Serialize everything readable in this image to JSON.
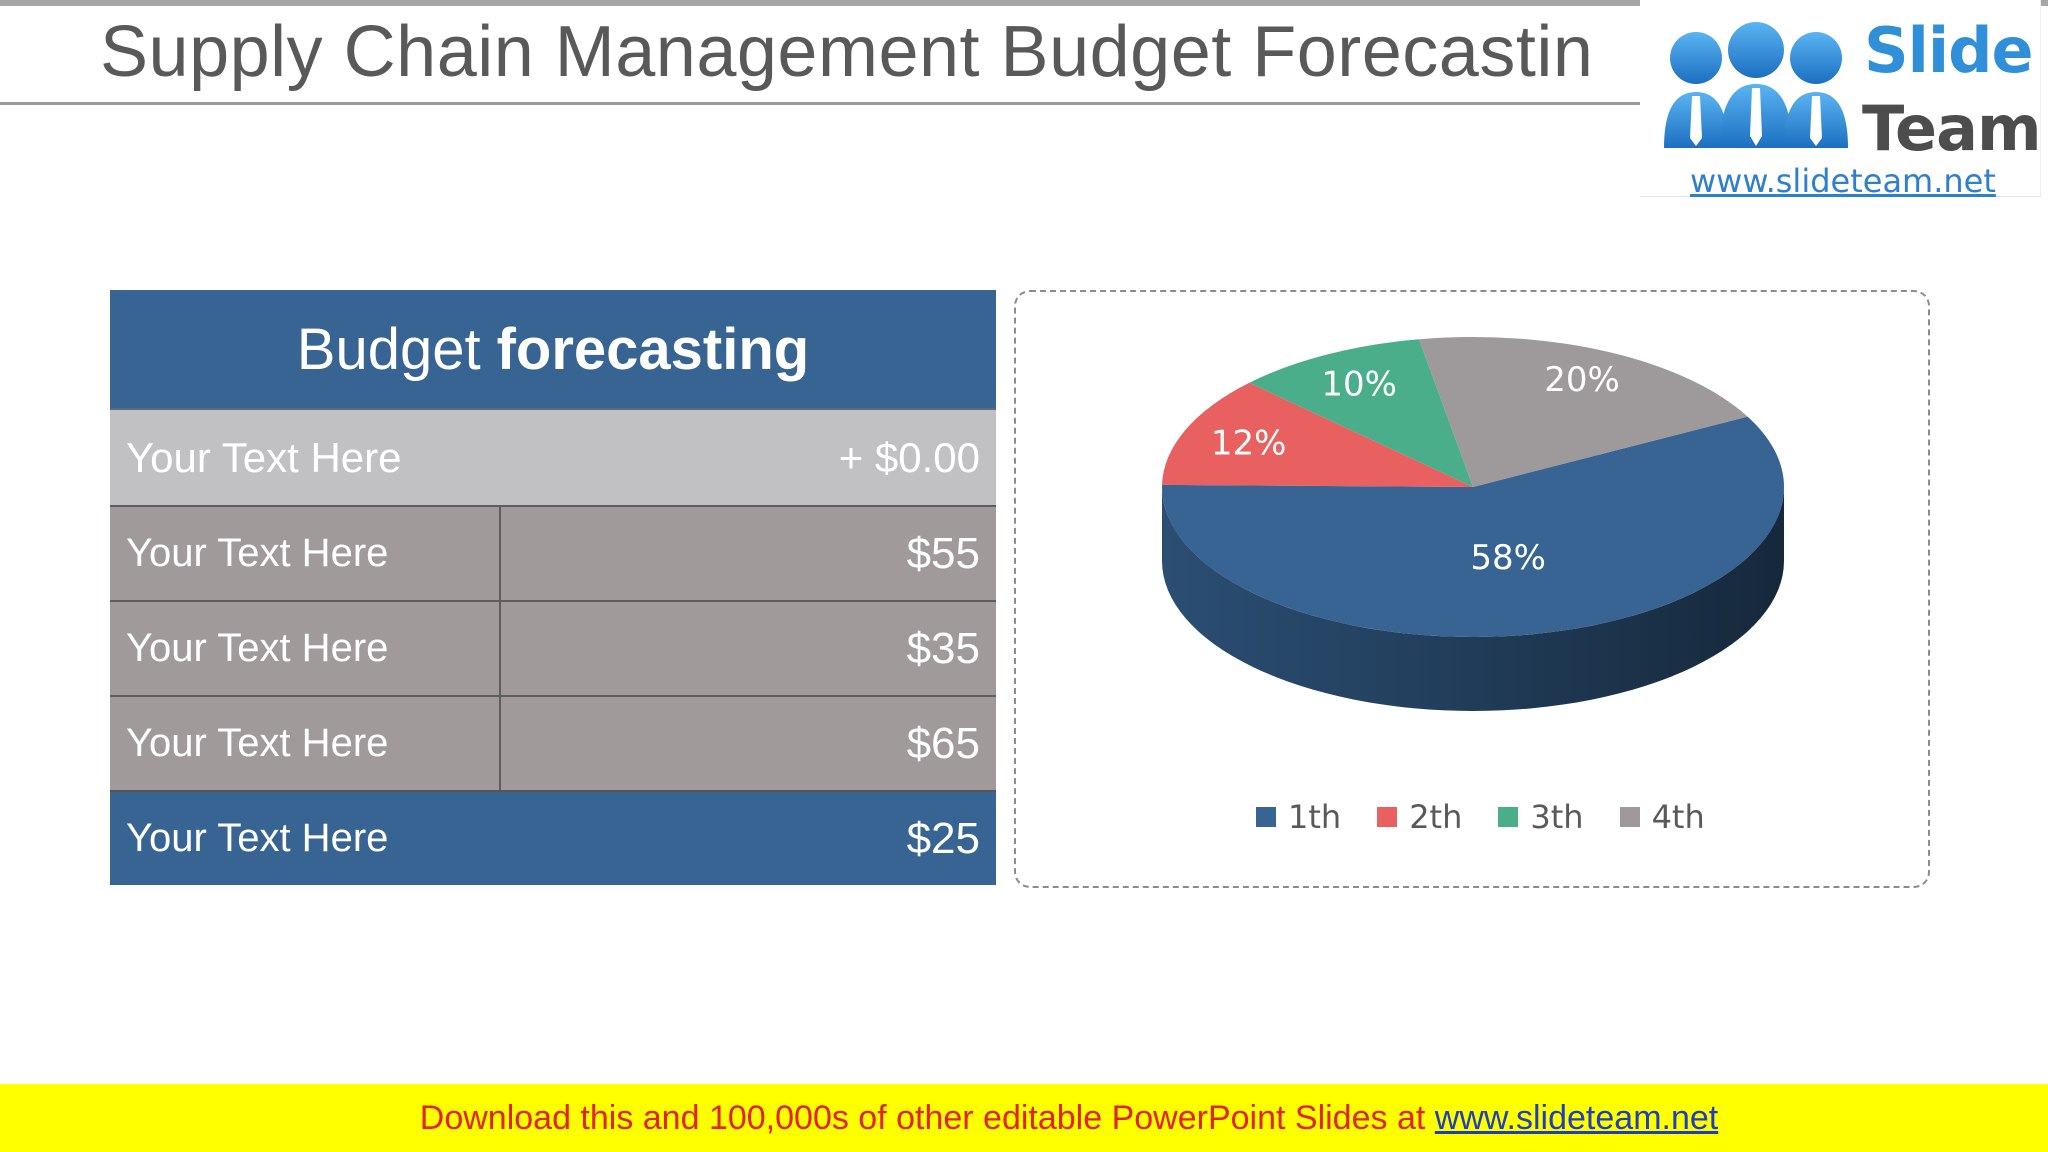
{
  "slide": {
    "title": "Supply Chain Management Budget Forecastin"
  },
  "logo": {
    "word1": "Slide",
    "word2": "Team",
    "url": "www.slideteam.net"
  },
  "table": {
    "header_normal": "Budget",
    "header_bold": "forecasting",
    "rows": [
      {
        "label": "Your Text Here",
        "value": "+ $0.00"
      },
      {
        "label": "Your Text Here",
        "value": "$55"
      },
      {
        "label": "Your Text Here",
        "value": "$35"
      },
      {
        "label": "Your Text Here",
        "value": "$65"
      },
      {
        "label": "Your Text Here",
        "value": "$25"
      }
    ]
  },
  "chart_data": {
    "type": "pie",
    "style": "3d",
    "categories": [
      "1th",
      "2th",
      "3th",
      "4th"
    ],
    "values": [
      58,
      12,
      10,
      20
    ],
    "data_labels": [
      "58%",
      "12%",
      "10%",
      "20%"
    ],
    "colors": [
      "#376493",
      "#e8605f",
      "#4aae8a",
      "#9e9a9b"
    ],
    "legend_position": "bottom"
  },
  "footer": {
    "text": "Download this and 100,000s of other editable PowerPoint Slides at ",
    "link": "www.slideteam.net"
  },
  "colors": {
    "accent_blue": "#376493",
    "footer_bg": "#ffff00",
    "footer_text": "#e2231a"
  }
}
